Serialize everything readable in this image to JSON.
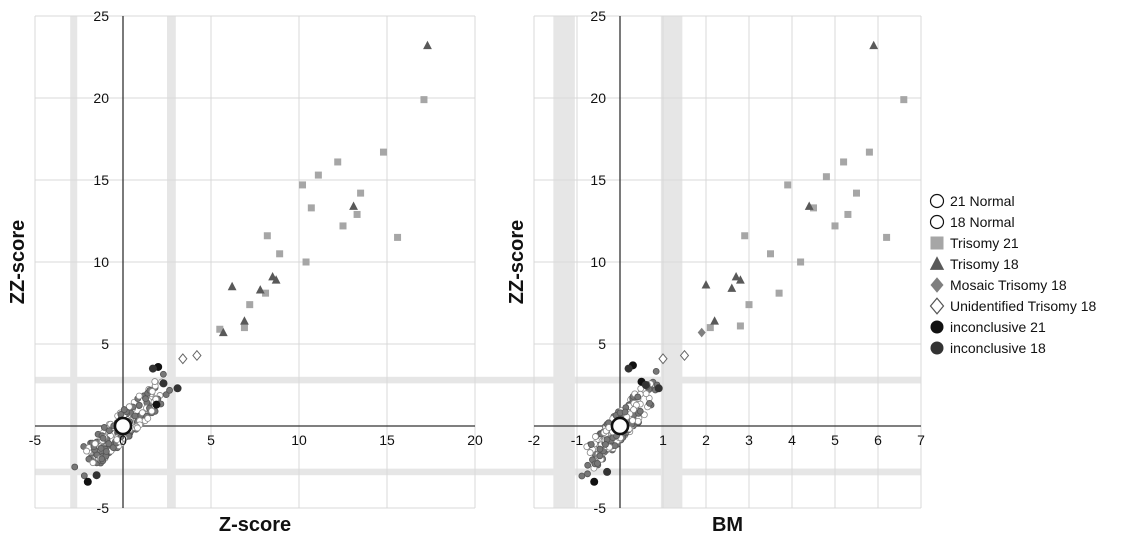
{
  "chart_data": [
    {
      "type": "scatter",
      "xlabel": "Z-score",
      "ylabel": "ZZ-score",
      "xlim": [
        -5,
        20
      ],
      "ylim": [
        -5,
        25
      ],
      "xticks": [
        -5,
        0,
        5,
        10,
        15,
        20
      ],
      "yticks": [
        -5,
        5,
        10,
        15,
        20,
        25
      ],
      "grid": true,
      "shaded_bands": {
        "x": [
          [
            -3,
            -2.6
          ],
          [
            2.5,
            3
          ]
        ],
        "y": [
          [
            -3,
            -2.6
          ],
          [
            2.6,
            3
          ]
        ]
      },
      "series": [
        {
          "name": "Trisomy 21",
          "points": [
            [
              5.5,
              5.9
            ],
            [
              6.9,
              6.0
            ],
            [
              7.2,
              7.4
            ],
            [
              8.1,
              8.1
            ],
            [
              8.2,
              11.6
            ],
            [
              8.9,
              10.5
            ],
            [
              10.2,
              14.7
            ],
            [
              10.4,
              10.0
            ],
            [
              10.7,
              13.3
            ],
            [
              11.1,
              15.3
            ],
            [
              12.2,
              16.1
            ],
            [
              12.5,
              12.2
            ],
            [
              13.3,
              12.9
            ],
            [
              13.5,
              14.2
            ],
            [
              14.8,
              16.7
            ],
            [
              15.6,
              11.5
            ],
            [
              17.1,
              19.9
            ]
          ]
        },
        {
          "name": "Trisomy 18",
          "points": [
            [
              5.7,
              5.7
            ],
            [
              6.2,
              8.5
            ],
            [
              6.9,
              6.4
            ],
            [
              7.8,
              8.3
            ],
            [
              8.5,
              9.1
            ],
            [
              8.7,
              8.9
            ],
            [
              13.1,
              13.4
            ],
            [
              17.3,
              23.2
            ]
          ]
        },
        {
          "name": "Unidentified Trisomy 18",
          "points": [
            [
              3.4,
              4.1
            ],
            [
              4.2,
              4.3
            ]
          ]
        },
        {
          "name": "inconclusive 21",
          "points": [
            [
              1.9,
              1.3
            ],
            [
              2.0,
              3.6
            ],
            [
              -2.0,
              -3.4
            ]
          ]
        },
        {
          "name": "inconclusive 18",
          "points": [
            [
              2.3,
              2.6
            ],
            [
              3.1,
              2.3
            ],
            [
              1.7,
              3.5
            ],
            [
              -1.5,
              -3.0
            ]
          ]
        },
        {
          "name": "21 Normal",
          "points": [
            [
              0,
              0
            ]
          ]
        },
        {
          "name": "18 Normal",
          "points": [
            [
              0,
              0
            ]
          ]
        }
      ]
    },
    {
      "type": "scatter",
      "xlabel": "BM",
      "ylabel": "ZZ-score",
      "xlim": [
        -2,
        7
      ],
      "ylim": [
        -5,
        25
      ],
      "xticks": [
        -2,
        -1,
        1,
        2,
        3,
        4,
        5,
        6,
        7
      ],
      "yticks": [
        -5,
        5,
        10,
        15,
        20,
        25
      ],
      "grid": true,
      "shaded_bands": {
        "x": [
          [
            -1.55,
            -1.05
          ],
          [
            0.95,
            1.45
          ]
        ],
        "y": [
          [
            -3,
            -2.6
          ],
          [
            2.6,
            3
          ]
        ]
      },
      "series": [
        {
          "name": "Trisomy 21",
          "points": [
            [
              2.1,
              6.0
            ],
            [
              2.8,
              6.1
            ],
            [
              2.9,
              11.6
            ],
            [
              3.0,
              7.4
            ],
            [
              3.5,
              10.5
            ],
            [
              3.7,
              8.1
            ],
            [
              3.9,
              14.7
            ],
            [
              4.2,
              10.0
            ],
            [
              4.5,
              13.3
            ],
            [
              4.8,
              15.2
            ],
            [
              5.0,
              12.2
            ],
            [
              5.2,
              16.1
            ],
            [
              5.3,
              12.9
            ],
            [
              5.5,
              14.2
            ],
            [
              5.8,
              16.7
            ],
            [
              6.2,
              11.5
            ],
            [
              6.6,
              19.9
            ]
          ]
        },
        {
          "name": "Trisomy 18",
          "points": [
            [
              2.0,
              8.6
            ],
            [
              2.2,
              6.4
            ],
            [
              2.6,
              8.4
            ],
            [
              2.7,
              9.1
            ],
            [
              2.8,
              8.9
            ],
            [
              4.4,
              13.4
            ],
            [
              5.9,
              23.2
            ]
          ]
        },
        {
          "name": "Mosaic Trisomy 18",
          "points": [
            [
              1.9,
              5.7
            ]
          ]
        },
        {
          "name": "Unidentified Trisomy 18",
          "points": [
            [
              1.0,
              4.1
            ],
            [
              1.5,
              4.3
            ]
          ]
        },
        {
          "name": "inconclusive 21",
          "points": [
            [
              0.3,
              3.7
            ],
            [
              0.5,
              2.7
            ],
            [
              -0.6,
              -3.4
            ]
          ]
        },
        {
          "name": "inconclusive 18",
          "points": [
            [
              0.6,
              2.5
            ],
            [
              0.9,
              2.3
            ],
            [
              0.2,
              3.5
            ],
            [
              -0.3,
              -2.8
            ]
          ]
        },
        {
          "name": "21 Normal",
          "points": [
            [
              0,
              0
            ]
          ]
        },
        {
          "name": "18 Normal",
          "points": [
            [
              0,
              0
            ]
          ]
        }
      ]
    }
  ],
  "legend": {
    "placement": "right",
    "items": [
      {
        "label": "21 Normal",
        "marker": "circle-open"
      },
      {
        "label": "18 Normal",
        "marker": "circle-open"
      },
      {
        "label": "Trisomy 21",
        "marker": "square"
      },
      {
        "label": "Trisomy 18",
        "marker": "triangle"
      },
      {
        "label": "Mosaic Trisomy 18",
        "marker": "diamond"
      },
      {
        "label": "Unidentified Trisomy 18",
        "marker": "diamond-open"
      },
      {
        "label": "inconclusive 21",
        "marker": "circle-black"
      },
      {
        "label": "inconclusive 18",
        "marker": "circle-dark"
      }
    ]
  },
  "colors": {
    "trisomy21": "#a6a6a6",
    "trisomy18": "#595959",
    "mosaic18": "#7f7f7f",
    "inconclusive21": "#111111",
    "inconclusive18": "#333333",
    "band": "#e6e6e6",
    "grid": "#d9d9d9",
    "axis": "#333333"
  }
}
